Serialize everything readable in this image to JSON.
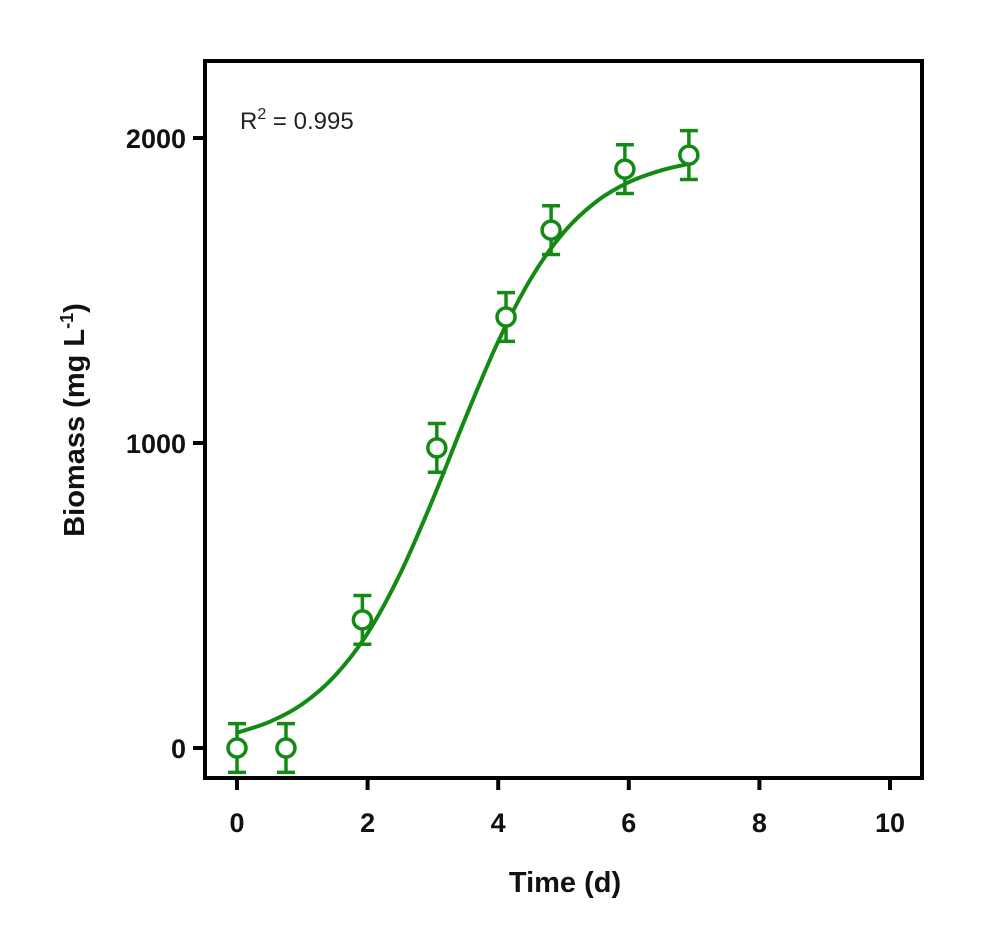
{
  "chart_data": {
    "type": "scatter",
    "xlabel": "Time (d)",
    "ylabel_main": "Biomass (mg L",
    "ylabel_sup": "-1",
    "ylabel_end": ")",
    "xlim": [
      -0.5,
      10.5
    ],
    "ylim": [
      -100,
      2250
    ],
    "xticks": [
      0,
      2,
      4,
      6,
      8,
      10
    ],
    "yticks": [
      0,
      1000,
      2000
    ],
    "xtick_labels": [
      "0",
      "2",
      "4",
      "6",
      "8",
      "10"
    ],
    "ytick_labels": [
      "0",
      "1000",
      "2000"
    ],
    "grid": false,
    "color": "#138a13",
    "annotation": {
      "main": "R",
      "sup": "2",
      "rest": " = 0.995"
    },
    "points": [
      {
        "x": 0,
        "y": 0,
        "err": 80
      },
      {
        "x": 0.75,
        "y": 0,
        "err": 80
      },
      {
        "x": 1.92,
        "y": 420,
        "err": 80
      },
      {
        "x": 3.06,
        "y": 984,
        "err": 80
      },
      {
        "x": 4.12,
        "y": 1413,
        "err": 80
      },
      {
        "x": 4.81,
        "y": 1698,
        "err": 80
      },
      {
        "x": 5.94,
        "y": 1898,
        "err": 80
      },
      {
        "x": 6.92,
        "y": 1944,
        "err": 80
      }
    ],
    "fit_curve": {
      "x": [
        0,
        0.5,
        1,
        1.5,
        2,
        2.5,
        3,
        3.5,
        4,
        4.5,
        5,
        5.5,
        6,
        6.5,
        7
      ],
      "y": [
        50,
        86,
        144,
        237,
        376,
        572,
        816,
        1083,
        1333,
        1539,
        1690,
        1791,
        1855,
        1894,
        1919
      ]
    }
  }
}
